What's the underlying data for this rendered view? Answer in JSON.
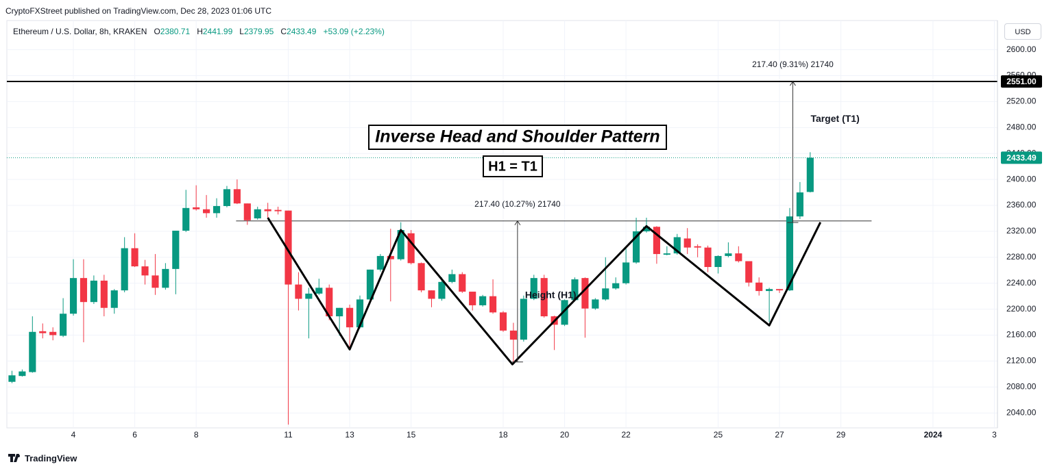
{
  "header": {
    "publisher": "CryptoFXStreet published on TradingView.com, Dec 28, 2023 01:06 UTC",
    "symbol": "Ethereum / U.S. Dollar, 8h, KRAKEN",
    "o_label": "O",
    "o_value": "2380.71",
    "h_label": "H",
    "h_value": "2441.99",
    "l_label": "L",
    "l_value": "2379.95",
    "c_label": "C",
    "c_value": "2433.49",
    "change": "+53.09 (+2.23%)"
  },
  "footer": {
    "brand": "TradingView"
  },
  "chart_data": {
    "type": "candlestick",
    "currency": "USD",
    "up_color": "#089981",
    "down_color": "#f23645",
    "grid": true,
    "categories": [
      null,
      null,
      null,
      null,
      null,
      null,
      null,
      null,
      null,
      null,
      null,
      null,
      null,
      null,
      null,
      null,
      null,
      null,
      null,
      null,
      null,
      null,
      null,
      null,
      null,
      null,
      null,
      null,
      null,
      null,
      null,
      null,
      null,
      null,
      null,
      null,
      null,
      null,
      null,
      null,
      null,
      null,
      null,
      null,
      null,
      null,
      null,
      null,
      null,
      null,
      null,
      null,
      null,
      null,
      null,
      null,
      null,
      null,
      null,
      null,
      null,
      null,
      null,
      null,
      null,
      null,
      null,
      null,
      null,
      null,
      null,
      null,
      null,
      null,
      null,
      null,
      null,
      null,
      null
    ],
    "open": [
      2088,
      2097,
      2103,
      2166,
      2165,
      2159,
      2193,
      2248,
      2211,
      2244,
      2202,
      2229,
      2294,
      2266,
      2252,
      2233,
      2262,
      2321,
      2357,
      2354,
      2348,
      2359,
      2385,
      2363,
      2340,
      2354,
      2353,
      2352,
      2238,
      2216,
      2224,
      2233,
      2189,
      2202,
      2172,
      2215,
      2261,
      2282,
      2277,
      2317,
      2271,
      2229,
      2216,
      2242,
      2254,
      2227,
      2206,
      2220,
      2195,
      2167,
      2153,
      2216,
      2248,
      2189,
      2176,
      2214,
      2248,
      2201,
      2215,
      2232,
      2240,
      2272,
      2320,
      2327,
      2284,
      2286,
      2309,
      2297,
      2295,
      2265,
      2282,
      2286,
      2274,
      2241,
      2228,
      2231,
      2229,
      2343,
      2380.71
    ],
    "high": [
      2105,
      2107,
      2189,
      2178,
      2172,
      2217,
      2277,
      2277,
      2252,
      2253,
      2231,
      2311,
      2317,
      2276,
      2285,
      2271,
      2321,
      2384,
      2391,
      2376,
      2371,
      2390,
      2400,
      2363,
      2358,
      2364,
      2358,
      2352,
      2257,
      2233,
      2247,
      2238,
      2202,
      2207,
      2221,
      2261,
      2285,
      2324,
      2334,
      2322,
      2272,
      2229,
      2249,
      2261,
      2257,
      2227,
      2222,
      2246,
      2197,
      2179,
      2221,
      2253,
      2253,
      2190,
      2215,
      2249,
      2249,
      2217,
      2280,
      2249,
      2294,
      2341,
      2341,
      2328,
      2297,
      2316,
      2325,
      2300,
      2298,
      2283,
      2303,
      2297,
      2274,
      2249,
      2233,
      2231,
      2356,
      2396,
      2441.99
    ],
    "low": [
      2086,
      2096,
      2102,
      2155,
      2152,
      2157,
      2190,
      2149,
      2208,
      2189,
      2193,
      2226,
      2265,
      2238,
      2222,
      2230,
      2223,
      2319,
      2352,
      2341,
      2341,
      2357,
      2362,
      2330,
      2338,
      2341,
      2346,
      2022,
      2198,
      2155,
      2222,
      2183,
      2159,
      2140,
      2170,
      2212,
      2258,
      2212,
      2275,
      2269,
      2226,
      2203,
      2213,
      2240,
      2225,
      2198,
      2204,
      2193,
      2165,
      2117,
      2150,
      2214,
      2187,
      2137,
      2174,
      2212,
      2156,
      2199,
      2213,
      2230,
      2238,
      2270,
      2318,
      2270,
      2283,
      2284,
      2285,
      2280,
      2257,
      2255,
      2280,
      2272,
      2235,
      2221,
      2180,
      2225,
      2228,
      2339,
      2379.95
    ],
    "close": [
      2098,
      2104,
      2165,
      2163,
      2160,
      2193,
      2248,
      2211,
      2244,
      2202,
      2229,
      2294,
      2266,
      2252,
      2233,
      2262,
      2321,
      2356,
      2354,
      2348,
      2359,
      2385,
      2363,
      2337,
      2354,
      2351,
      2351,
      2238,
      2216,
      2224,
      2233,
      2189,
      2202,
      2172,
      2215,
      2261,
      2282,
      2277,
      2322,
      2271,
      2229,
      2216,
      2242,
      2254,
      2227,
      2206,
      2220,
      2195,
      2167,
      2153,
      2216,
      2248,
      2189,
      2176,
      2214,
      2246,
      2201,
      2215,
      2232,
      2240,
      2272,
      2320,
      2327,
      2285,
      2286,
      2311,
      2295,
      2295,
      2265,
      2282,
      2286,
      2274,
      2241,
      2228,
      2231,
      2229,
      2343,
      2380,
      2433.49
    ],
    "xlim": [
      -0.5,
      96.3
    ],
    "xticks": [
      {
        "value": 6,
        "label": "4"
      },
      {
        "value": 12,
        "label": "6"
      },
      {
        "value": 18,
        "label": "8"
      },
      {
        "value": 27,
        "label": "11"
      },
      {
        "value": 33,
        "label": "13"
      },
      {
        "value": 39,
        "label": "15"
      },
      {
        "value": 48,
        "label": "18"
      },
      {
        "value": 54,
        "label": "20"
      },
      {
        "value": 60,
        "label": "22"
      },
      {
        "value": 69,
        "label": "25"
      },
      {
        "value": 75,
        "label": "27"
      },
      {
        "value": 81,
        "label": "29"
      },
      {
        "value": 90,
        "label": "2024"
      },
      {
        "value": 96,
        "label": "3"
      }
    ],
    "ylim": [
      2017,
      2645
    ],
    "yticks": [
      {
        "value": 2040,
        "label": "2040.00"
      },
      {
        "value": 2080,
        "label": "2080.00"
      },
      {
        "value": 2120,
        "label": "2120.00"
      },
      {
        "value": 2160,
        "label": "2160.00"
      },
      {
        "value": 2200,
        "label": "2200.00"
      },
      {
        "value": 2240,
        "label": "2240.00"
      },
      {
        "value": 2280,
        "label": "2280.00"
      },
      {
        "value": 2320,
        "label": "2320.00"
      },
      {
        "value": 2360,
        "label": "2360.00"
      },
      {
        "value": 2400,
        "label": "2400.00"
      },
      {
        "value": 2440,
        "label": "2440.00"
      },
      {
        "value": 2480,
        "label": "2480.00"
      },
      {
        "value": 2520,
        "label": "2520.00"
      },
      {
        "value": 2560,
        "label": "2560.00"
      },
      {
        "value": 2600,
        "label": "2600.00"
      }
    ],
    "annotations": {
      "pattern_title": "Inverse Head and Shoulder Pattern",
      "equation": "H1 = T1",
      "height_label": "Height (H1)",
      "target_label": "Target (T1)",
      "height_measure": {
        "label": "217.40 (10.27%) 21740",
        "x": 49.4,
        "from": 2118.6,
        "to": 2336
      },
      "target_measure": {
        "label": "217.40 (9.31%) 21740",
        "x": 76.3,
        "from": 2333.6,
        "to": 2551
      },
      "neckline": {
        "x": [
          21.9,
          84
        ],
        "y": [
          2336,
          2336
        ]
      },
      "pattern_line": {
        "x": [
          25,
          33,
          38,
          48.9,
          62,
          74,
          79
        ],
        "y": [
          2341,
          2138,
          2322,
          2115,
          2328,
          2175,
          2334
        ]
      },
      "target_level": {
        "value": 2551,
        "label": "2551.00"
      },
      "last_price": {
        "value": 2433.49,
        "label": "2433.49"
      }
    }
  }
}
